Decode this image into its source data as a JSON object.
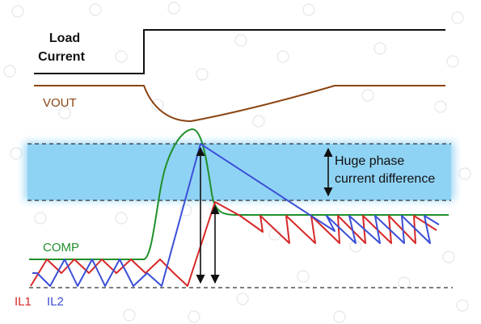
{
  "labels": {
    "load_current_line1": "Load",
    "load_current_line2": "Current",
    "vout": "VOUT",
    "annotation_line1": "Huge phase",
    "annotation_line2": "current difference",
    "comp": "COMP",
    "il1": "IL1",
    "il2": "IL2"
  },
  "colors": {
    "load_current": "#111111",
    "vout": "#8B4513",
    "comp": "#1f8f2a",
    "il1": "#d62828",
    "il2": "#3b4fd8",
    "band_fill": "#8fd3f4",
    "reference_line": "#333333",
    "background_circles": "#e6e6e6"
  }
}
